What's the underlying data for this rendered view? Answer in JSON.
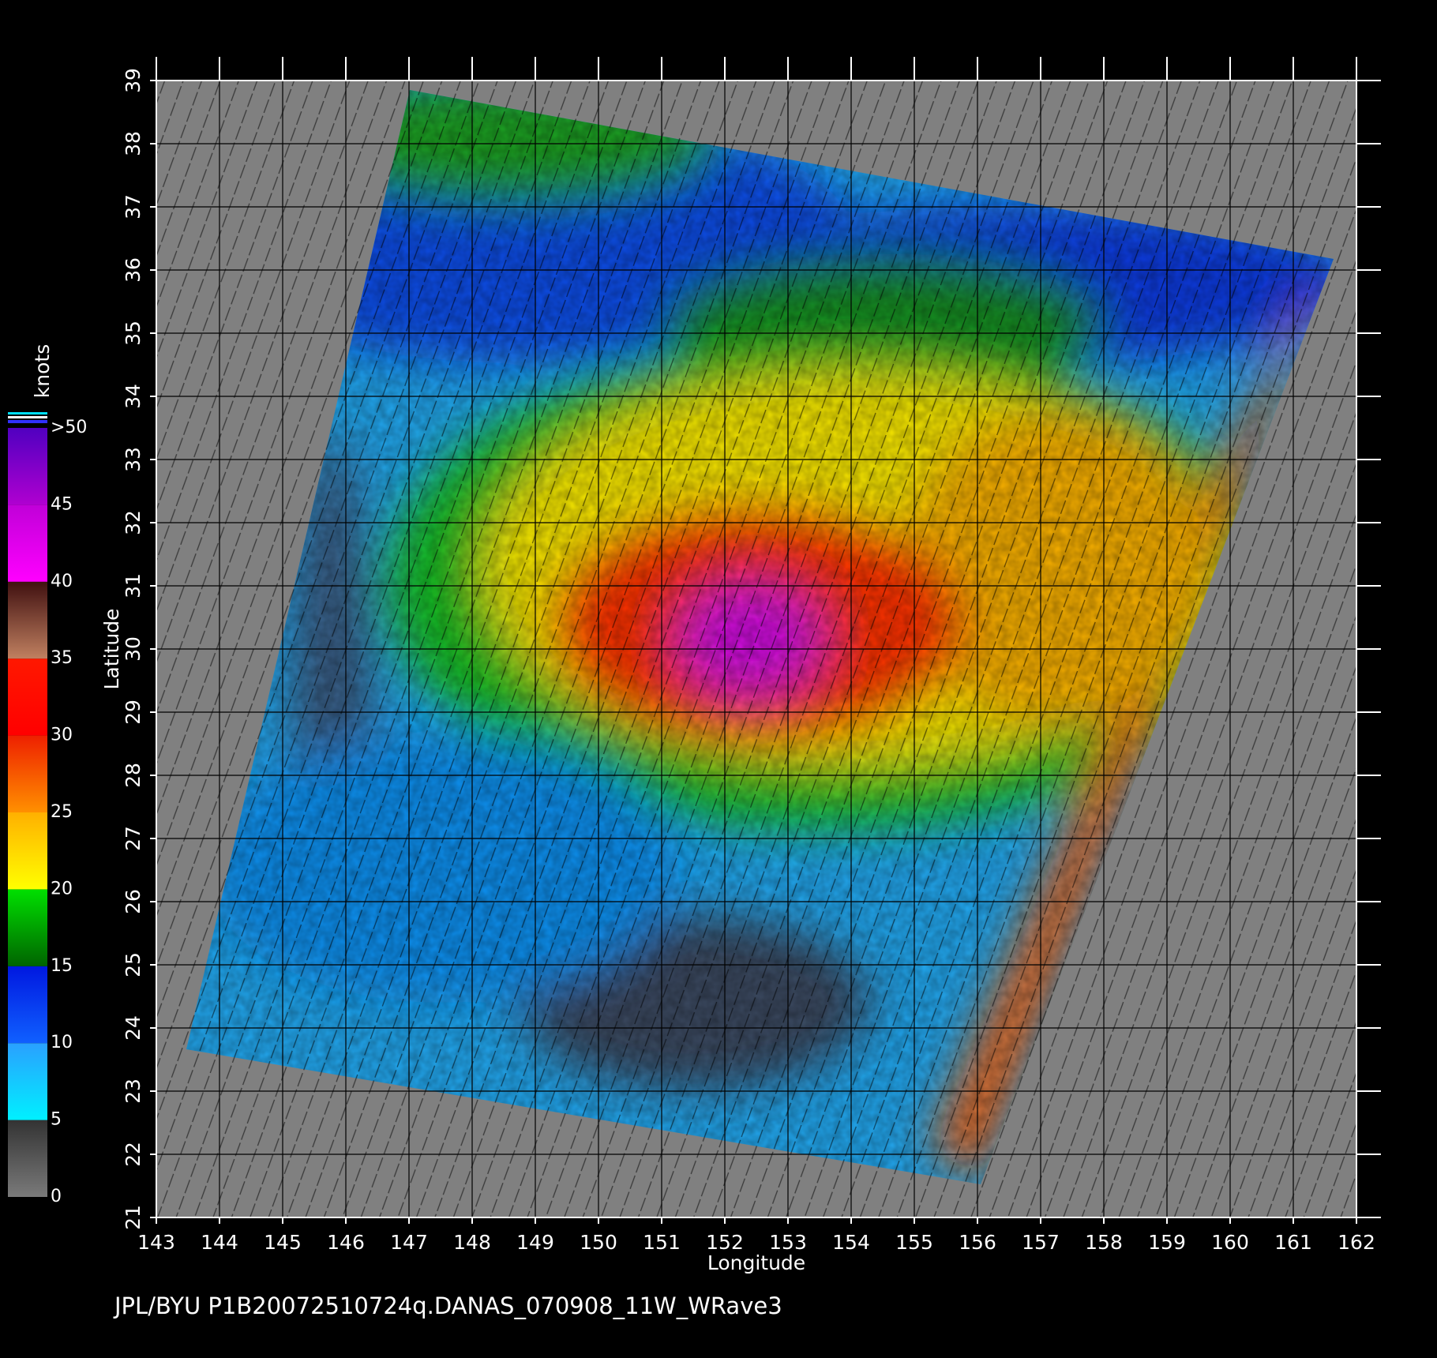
{
  "map": {
    "x_axis": {
      "label": "Longitude",
      "lim": [
        143,
        162
      ],
      "ticks": [
        143,
        144,
        145,
        146,
        147,
        148,
        149,
        150,
        151,
        152,
        153,
        154,
        155,
        156,
        157,
        158,
        159,
        160,
        161,
        162
      ]
    },
    "y_axis": {
      "label": "Latitude",
      "lim": [
        21,
        39
      ],
      "ticks": [
        21,
        22,
        23,
        24,
        25,
        26,
        27,
        28,
        29,
        30,
        31,
        32,
        33,
        34,
        35,
        36,
        37,
        38,
        39
      ]
    },
    "colorbar": {
      "title": "knots",
      "lim": [
        0,
        50
      ],
      "ticks": [
        0,
        5,
        10,
        15,
        20,
        25,
        30,
        35,
        40,
        45,
        {
          "value": 50,
          "label": ">50"
        }
      ],
      "colors": [
        [
          "#7a7a7a",
          "#333333"
        ],
        [
          "#00f0ff",
          "#2aa0ff"
        ],
        [
          "#1060ff",
          "#0018e0"
        ],
        [
          "#006400",
          "#00e000"
        ],
        [
          "#ffff00",
          "#ffb000"
        ],
        [
          "#ff9000",
          "#ee2000"
        ],
        [
          "#ff0000",
          "#ff1800"
        ],
        [
          "#c08060",
          "#401010"
        ],
        [
          "#ff00ff",
          "#c000d8"
        ],
        [
          "#b000d0",
          "#5000c0"
        ]
      ]
    },
    "footer": "JPL/BYU  P1B20072510724q.DANAS_070908_11W_WRave3"
  }
}
